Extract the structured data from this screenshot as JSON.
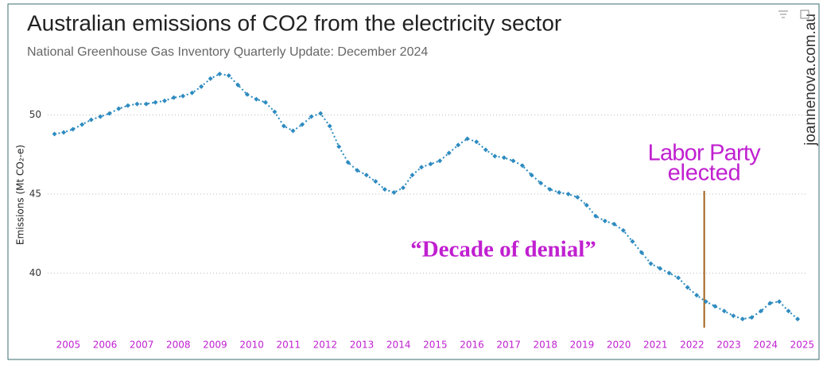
{
  "chart_data": {
    "type": "line",
    "title": "Australian emissions of CO2 from the electricity sector",
    "subtitle": "National Greenhouse Gas Inventory Quarterly Update: December 2024",
    "y_label": "Emissions (Mt CO₂-e)",
    "watermark": "joannenova.com.au",
    "annotations": [
      {
        "lines": [
          "Labor Party",
          "elected"
        ],
        "x": 2022.33,
        "color": "#c020d0"
      },
      {
        "text": "“Decade of denial”",
        "color": "#c020d0"
      }
    ],
    "event_line_color": "#a0601a",
    "x": [
      2004.625,
      2004.875,
      2005.125,
      2005.375,
      2005.625,
      2005.875,
      2006.125,
      2006.375,
      2006.625,
      2006.875,
      2007.125,
      2007.375,
      2007.625,
      2007.875,
      2008.125,
      2008.375,
      2008.625,
      2008.875,
      2009.125,
      2009.375,
      2009.625,
      2009.875,
      2010.125,
      2010.375,
      2010.625,
      2010.875,
      2011.125,
      2011.375,
      2011.625,
      2011.875,
      2012.125,
      2012.375,
      2012.625,
      2012.875,
      2013.125,
      2013.375,
      2013.625,
      2013.875,
      2014.125,
      2014.375,
      2014.625,
      2014.875,
      2015.125,
      2015.375,
      2015.625,
      2015.875,
      2016.125,
      2016.375,
      2016.625,
      2016.875,
      2017.125,
      2017.375,
      2017.625,
      2017.875,
      2018.125,
      2018.375,
      2018.625,
      2018.875,
      2019.125,
      2019.375,
      2019.625,
      2019.875,
      2020.125,
      2020.375,
      2020.625,
      2020.875,
      2021.125,
      2021.375,
      2021.625,
      2021.875,
      2022.125,
      2022.375,
      2022.625,
      2022.875,
      2023.125,
      2023.375,
      2023.625,
      2023.875,
      2024.125,
      2024.375,
      2024.625,
      2024.875
    ],
    "series": [
      {
        "name": "Emissions",
        "color": "#2e8bc0",
        "values": [
          48.8,
          48.9,
          49.1,
          49.4,
          49.7,
          49.9,
          50.1,
          50.4,
          50.6,
          50.7,
          50.7,
          50.8,
          50.9,
          51.1,
          51.2,
          51.4,
          51.8,
          52.3,
          52.6,
          52.5,
          51.9,
          51.3,
          51.0,
          50.8,
          50.2,
          49.3,
          49.0,
          49.4,
          49.9,
          50.1,
          49.3,
          48.0,
          47.0,
          46.5,
          46.2,
          45.8,
          45.3,
          45.1,
          45.4,
          46.2,
          46.7,
          46.9,
          47.1,
          47.6,
          48.1,
          48.5,
          48.3,
          47.8,
          47.4,
          47.3,
          47.1,
          46.8,
          46.2,
          45.7,
          45.3,
          45.1,
          45.0,
          44.8,
          44.3,
          43.6,
          43.3,
          43.1,
          42.7,
          42.0,
          41.3,
          40.6,
          40.3,
          40.0,
          39.7,
          39.1,
          38.6,
          38.2,
          37.9,
          37.6,
          37.3,
          37.1,
          37.2,
          37.6,
          38.1,
          38.2,
          37.6,
          37.1
        ]
      }
    ],
    "xlim": [
      2004.44,
      2025.35
    ],
    "xticks": [
      2005,
      2006,
      2007,
      2008,
      2009,
      2010,
      2011,
      2012,
      2013,
      2014,
      2015,
      2016,
      2017,
      2018,
      2019,
      2020,
      2021,
      2022,
      2023,
      2024,
      2025
    ],
    "xtick_color": "#c020d0",
    "ylim": [
      36.5,
      53
    ],
    "yticks": [
      40,
      45,
      50
    ],
    "grid": true
  }
}
